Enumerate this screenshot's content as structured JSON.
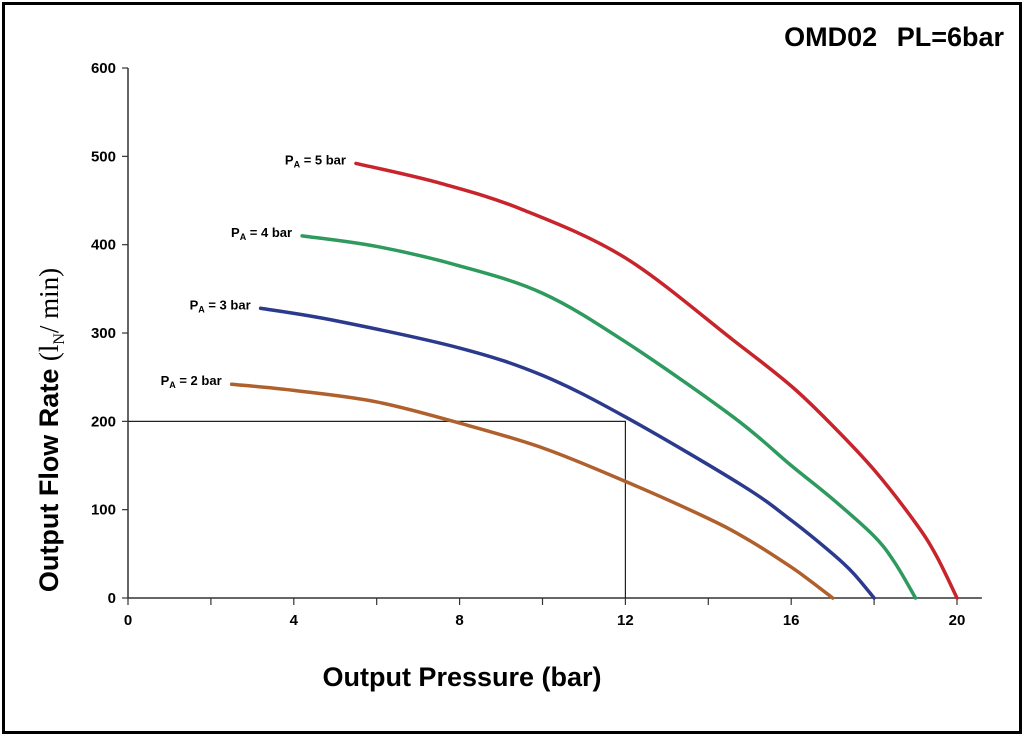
{
  "chart_data": {
    "type": "line",
    "title": "OMD02   PL=6bar",
    "xlabel": "Output Pressure  (bar)",
    "ylabel": "Output Flow Rate",
    "ylabel_unit": {
      "open": "(l",
      "sub": "N",
      "close": "/ min)"
    },
    "xlim": [
      0,
      20.6
    ],
    "ylim": [
      0,
      600
    ],
    "x_ticks": [
      0,
      4,
      8,
      12,
      16,
      20
    ],
    "x_minor_ticks": [
      2,
      6,
      10,
      14,
      18
    ],
    "y_ticks": [
      0,
      100,
      200,
      300,
      400,
      500,
      600
    ],
    "grid": false,
    "reference_lines": [
      {
        "x": 12,
        "y": 200
      }
    ],
    "series": [
      {
        "name": "P_A = 5 bar",
        "label_main": "P",
        "label_sub": "A",
        "label_rest": " = 5 bar",
        "color": "#c8242b",
        "x": [
          5.5,
          7.5,
          9.5,
          12,
          14.6,
          16,
          17,
          18,
          19,
          19.5,
          20
        ],
        "y": [
          492,
          470,
          440,
          385,
          292,
          240,
          195,
          145,
          85,
          48,
          0
        ]
      },
      {
        "name": "P_A = 4 bar",
        "label_main": "P",
        "label_sub": "A",
        "label_rest": " = 4 bar",
        "color": "#2e9a5e",
        "x": [
          4.2,
          6,
          8,
          10,
          12,
          14.6,
          16,
          17,
          18,
          18.5,
          19
        ],
        "y": [
          410,
          398,
          376,
          345,
          290,
          205,
          150,
          112,
          70,
          40,
          0
        ]
      },
      {
        "name": "P_A = 3 bar",
        "label_main": "P",
        "label_sub": "A",
        "label_rest": " = 3 bar",
        "color": "#2b3a8c",
        "x": [
          3.2,
          5,
          8,
          10,
          12,
          14.8,
          16,
          17,
          17.5,
          18
        ],
        "y": [
          328,
          314,
          283,
          252,
          205,
          128,
          88,
          50,
          28,
          0
        ]
      },
      {
        "name": "P_A = 2 bar",
        "label_main": "P",
        "label_sub": "A",
        "label_rest": " = 2 bar",
        "color": "#b0602c",
        "x": [
          2.5,
          4,
          6,
          8,
          10,
          12,
          14,
          15,
          16,
          16.5,
          17
        ],
        "y": [
          242,
          235,
          222,
          198,
          170,
          132,
          90,
          65,
          35,
          18,
          0
        ]
      }
    ]
  }
}
